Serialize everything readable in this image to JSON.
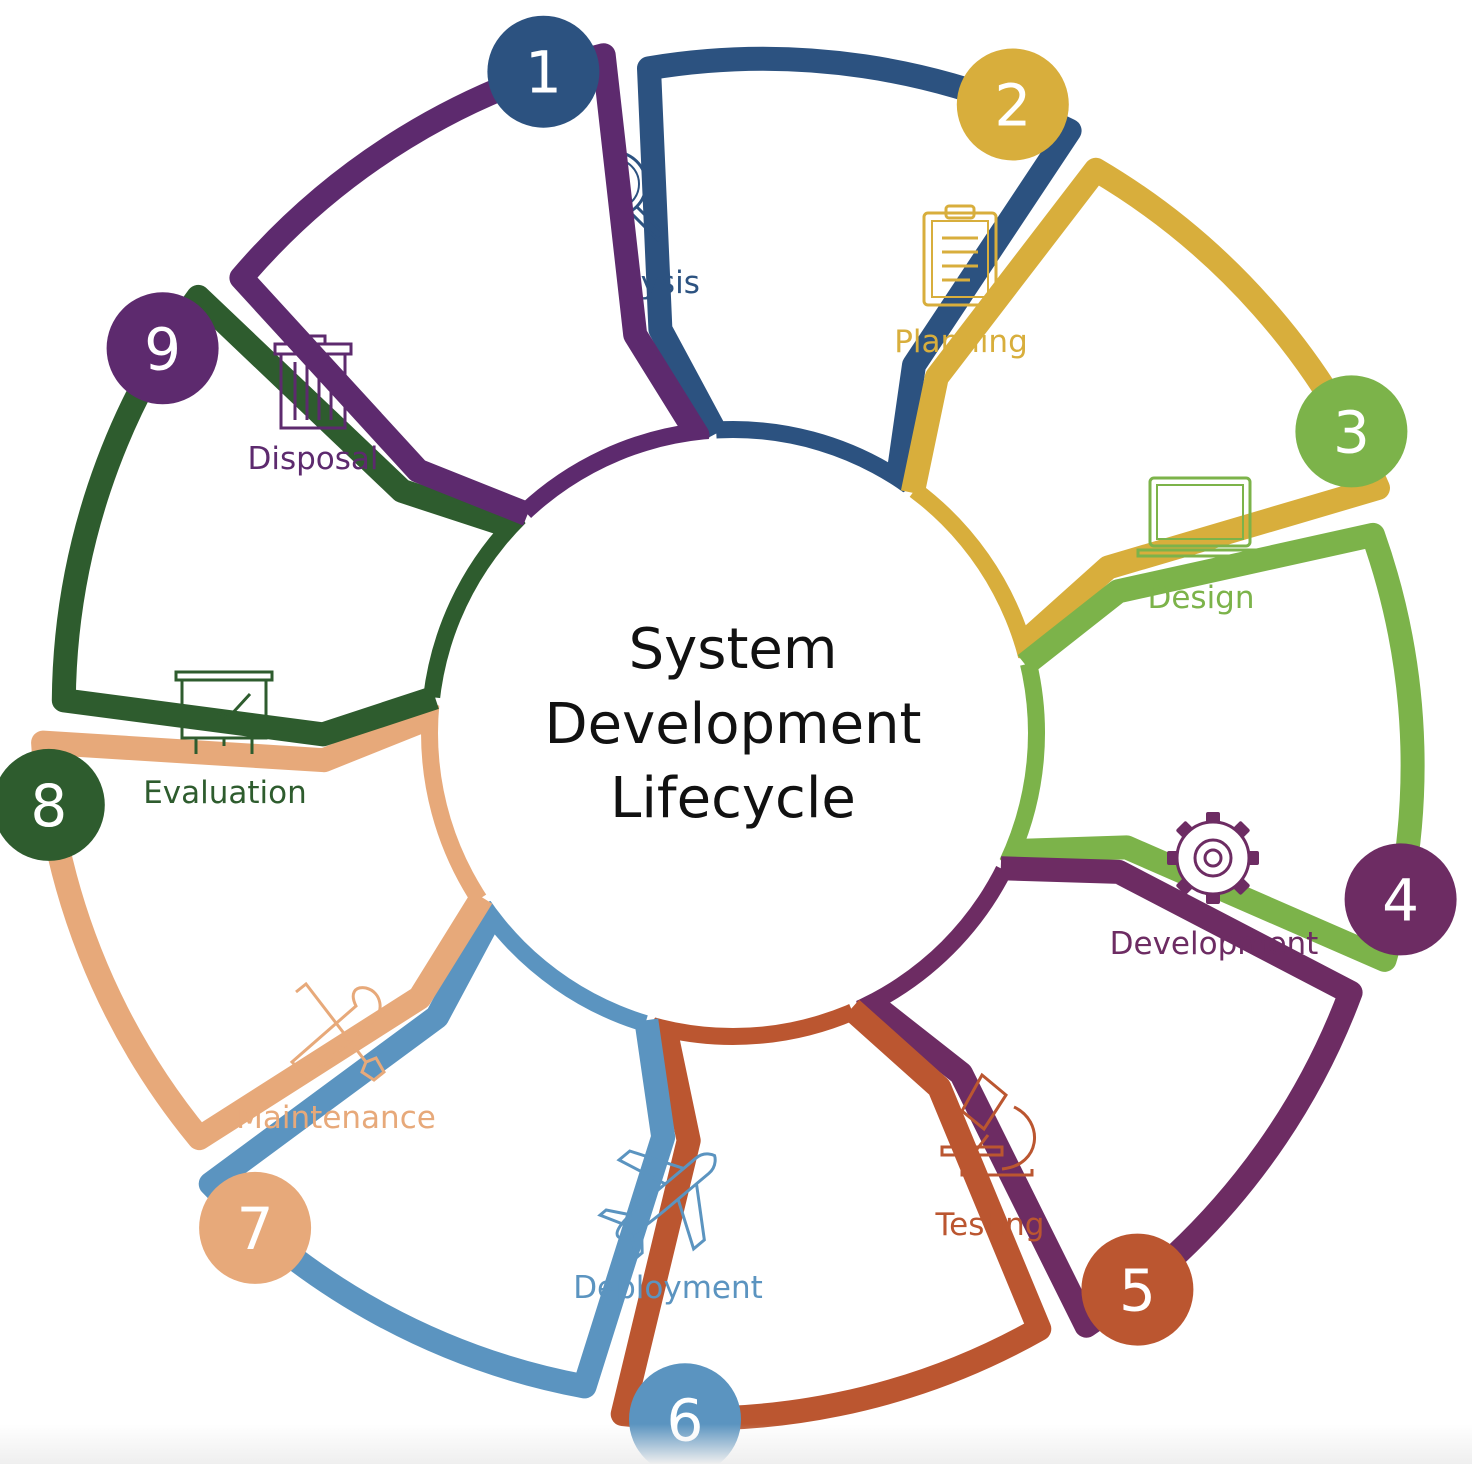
{
  "center_title": [
    "System",
    "Development",
    "Lifecycle"
  ],
  "stages": [
    {
      "number": "1",
      "label": "Analysis",
      "color": "#2c5280",
      "icon": "magnifier-icon"
    },
    {
      "number": "2",
      "label": "Planning",
      "color": "#d8ae3c",
      "icon": "clipboard-icon"
    },
    {
      "number": "3",
      "label": "Design",
      "color": "#7cb34a",
      "icon": "laptop-icon"
    },
    {
      "number": "4",
      "label": "Development",
      "color": "#6d2c63",
      "icon": "gear-icon"
    },
    {
      "number": "5",
      "label": "Testing",
      "color": "#bb5630",
      "icon": "microscope-icon"
    },
    {
      "number": "6",
      "label": "Deployment",
      "color": "#5b94c0",
      "icon": "airplane-icon"
    },
    {
      "number": "7",
      "label": "Maintenance",
      "color": "#e7a97a",
      "icon": "tools-icon"
    },
    {
      "number": "8",
      "label": "Evaluation",
      "color": "#2e5c2e",
      "icon": "presentation-chart-icon"
    },
    {
      "number": "9",
      "label": "Disposal",
      "color": "#5d2a6e",
      "icon": "trash-icon"
    }
  ]
}
